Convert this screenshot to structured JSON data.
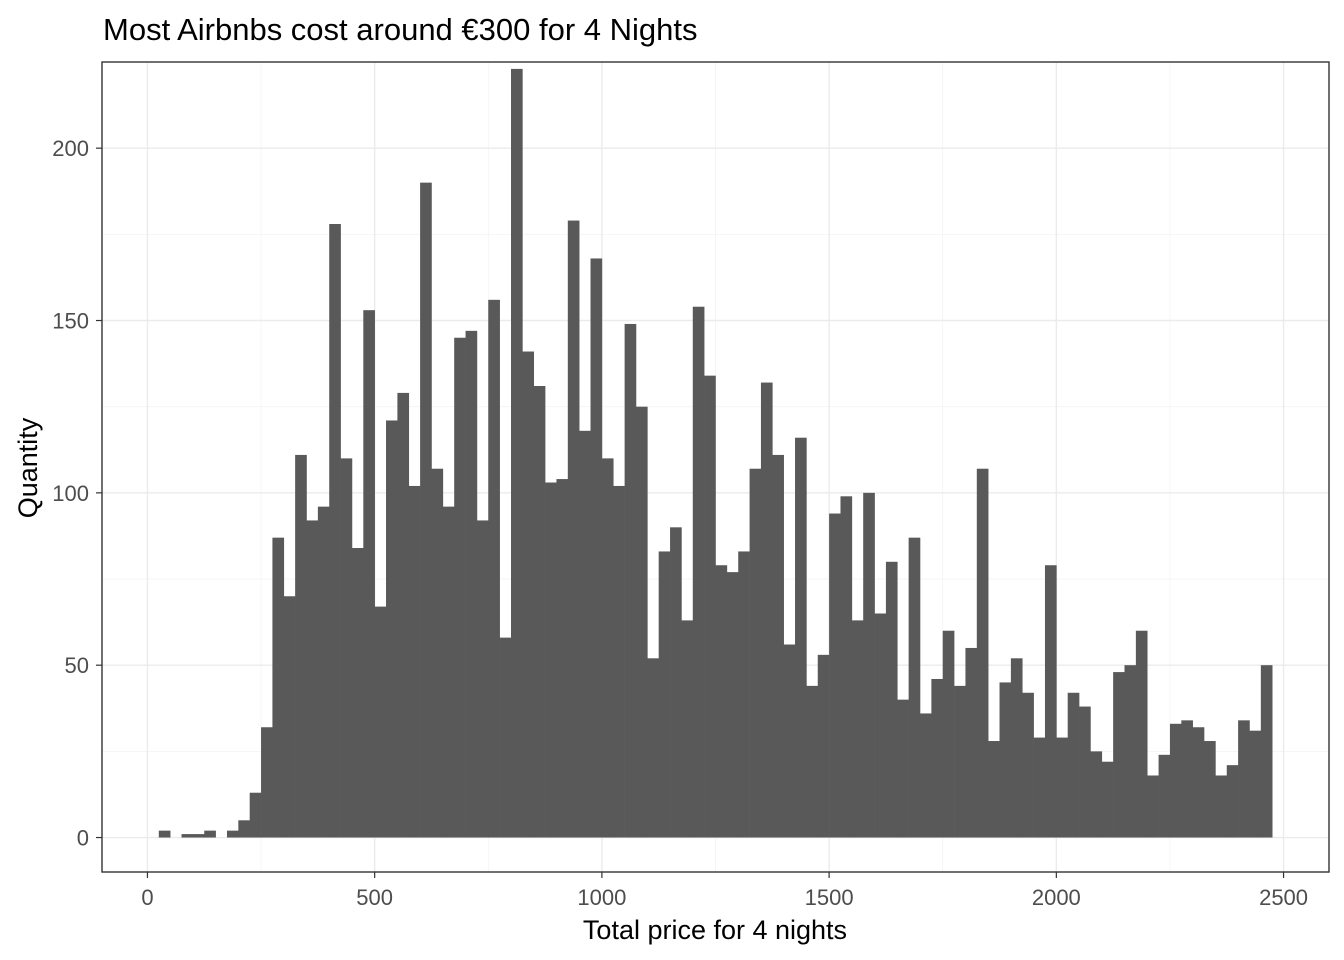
{
  "chart_data": {
    "type": "bar",
    "title": "Most Airbnbs cost around €300 for 4 Nights",
    "xlabel": "Total price for 4 nights",
    "ylabel": "Quantity",
    "xlim": [
      -100,
      2600
    ],
    "ylim": [
      -10,
      225
    ],
    "xticks": [
      0,
      500,
      1000,
      1500,
      2000,
      2500
    ],
    "yticks": [
      0,
      50,
      100,
      150,
      200
    ],
    "grid": true,
    "bin_width": 25,
    "bin_start": 0,
    "values": [
      0,
      2,
      0,
      1,
      1,
      2,
      0,
      2,
      5,
      13,
      32,
      87,
      70,
      111,
      92,
      96,
      178,
      110,
      84,
      153,
      67,
      121,
      129,
      102,
      190,
      107,
      96,
      145,
      147,
      92,
      156,
      58,
      223,
      141,
      131,
      103,
      104,
      179,
      118,
      168,
      110,
      102,
      149,
      125,
      52,
      83,
      90,
      63,
      154,
      134,
      79,
      77,
      83,
      107,
      132,
      111,
      56,
      116,
      44,
      53,
      94,
      99,
      63,
      100,
      65,
      80,
      40,
      87,
      36,
      46,
      60,
      44,
      55,
      107,
      28,
      45,
      52,
      42,
      29,
      79,
      29,
      42,
      38,
      25,
      22,
      48,
      50,
      60,
      18,
      24,
      33,
      34,
      32,
      28,
      18,
      21,
      34,
      31,
      50
    ]
  }
}
